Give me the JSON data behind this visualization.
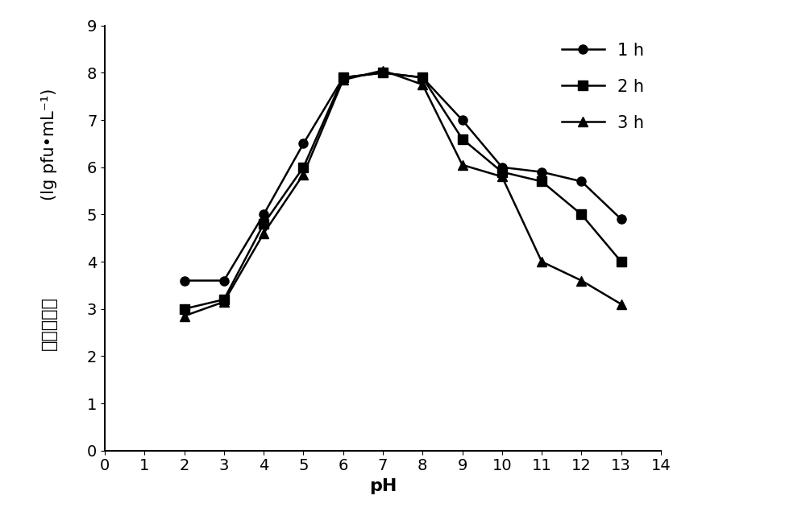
{
  "x": [
    2,
    3,
    4,
    5,
    6,
    7,
    8,
    9,
    10,
    11,
    12,
    13
  ],
  "series_1h": [
    3.6,
    3.6,
    5.0,
    6.5,
    7.9,
    8.0,
    7.9,
    7.0,
    6.0,
    5.9,
    5.7,
    4.9
  ],
  "series_2h": [
    3.0,
    3.2,
    4.8,
    6.0,
    7.9,
    8.0,
    7.9,
    6.6,
    5.9,
    5.7,
    5.0,
    4.0
  ],
  "series_3h": [
    2.85,
    3.15,
    4.6,
    5.85,
    7.85,
    8.05,
    7.75,
    6.05,
    5.8,
    4.0,
    3.6,
    3.1
  ],
  "ylabel_chinese": "噬菌体效价",
  "ylabel_latin": "lg pfu•mL⁻¹",
  "xlabel": "pH",
  "xlim": [
    0,
    14
  ],
  "ylim": [
    0,
    9
  ],
  "xticks": [
    0,
    1,
    2,
    3,
    4,
    5,
    6,
    7,
    8,
    9,
    10,
    11,
    12,
    13,
    14
  ],
  "yticks": [
    0,
    1,
    2,
    3,
    4,
    5,
    6,
    7,
    8,
    9
  ],
  "legend_labels": [
    "1 h",
    "2 h",
    "3 h"
  ],
  "line_color": "#000000",
  "marker_circle": "o",
  "marker_square": "s",
  "marker_triangle": "^",
  "linewidth": 1.8,
  "markersize": 8,
  "tick_fontsize": 14,
  "label_fontsize": 16,
  "legend_fontsize": 15
}
